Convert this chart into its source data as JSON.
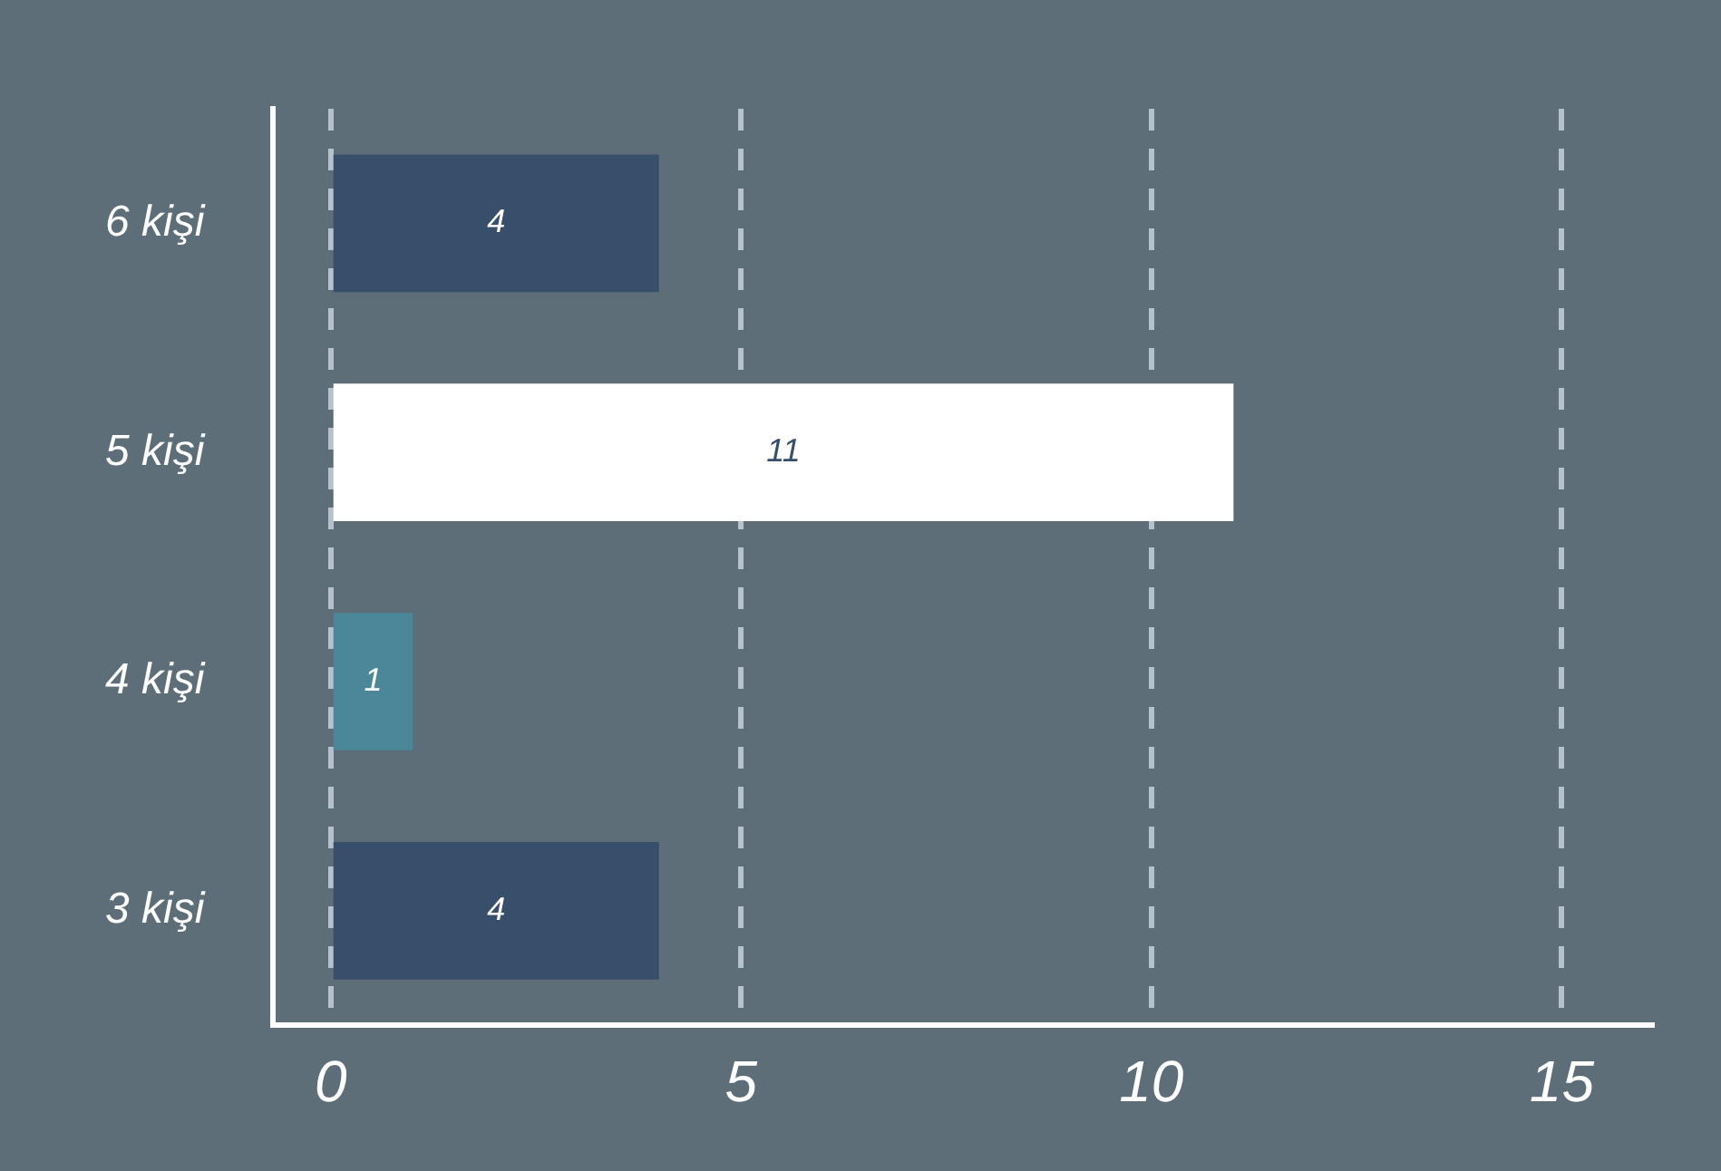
{
  "chart_data": {
    "type": "bar",
    "orientation": "horizontal",
    "categories": [
      "6 kişi",
      "5 kişi",
      "4 kişi",
      "3 kişi"
    ],
    "values": [
      4,
      11,
      1,
      4
    ],
    "colors": [
      "#384f6b",
      "#ffffff",
      "#4a8799",
      "#384f6b"
    ],
    "xlim": [
      -0.7,
      16.1
    ],
    "xticks": [
      0,
      5,
      10,
      15
    ],
    "grid": "x",
    "data_labels": true,
    "legend": false
  }
}
